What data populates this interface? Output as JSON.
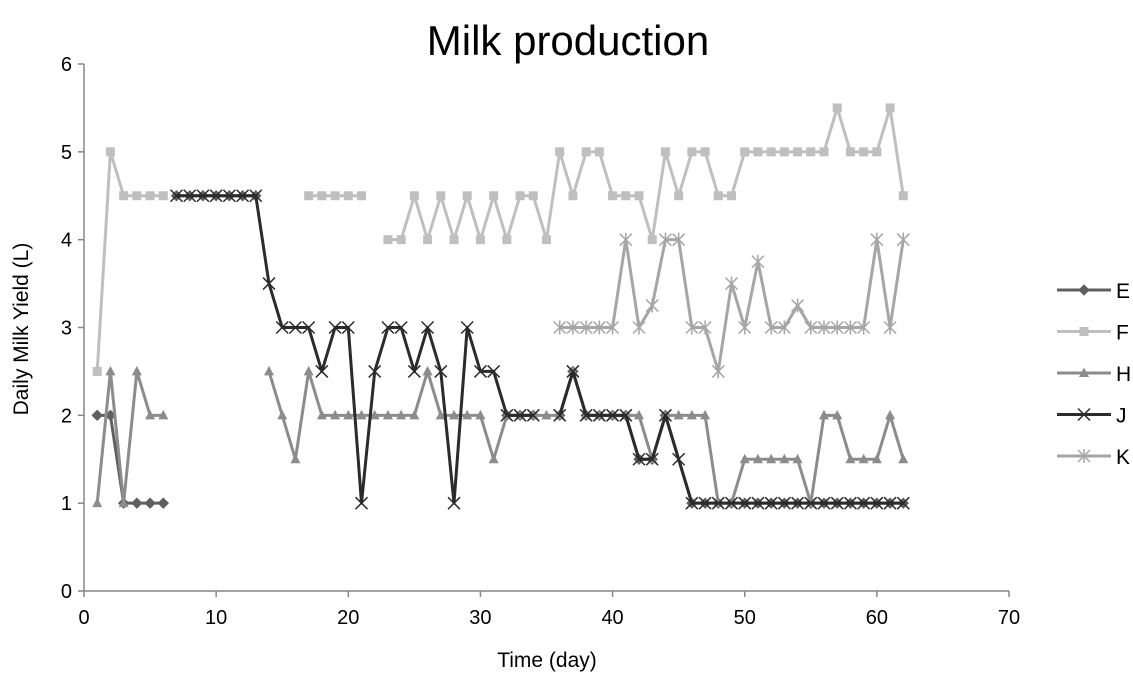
{
  "chart_data": {
    "type": "line",
    "title": "Milk production",
    "xlabel": "Time (day)",
    "ylabel": "Daily Milk Yield (L)",
    "xlim": [
      0,
      70
    ],
    "ylim": [
      0,
      6
    ],
    "xticks": [
      "0",
      "10",
      "20",
      "30",
      "40",
      "50",
      "60",
      "70"
    ],
    "yticks": [
      "0",
      "1",
      "2",
      "3",
      "4",
      "5",
      "6"
    ],
    "grid": false,
    "legend": "right",
    "series": [
      {
        "name": "E",
        "color": "#5f5f5f",
        "marker": "diamond",
        "points": [
          [
            1,
            2
          ],
          [
            2,
            2
          ],
          [
            3,
            1
          ],
          [
            4,
            1
          ],
          [
            5,
            1
          ],
          [
            6,
            1
          ],
          [
            7,
            4.5
          ],
          [
            8,
            4.5
          ],
          [
            9,
            4.5
          ],
          [
            10,
            4.5
          ],
          [
            11,
            4.5
          ],
          [
            12,
            4.5
          ],
          [
            13,
            4.5
          ],
          [
            32,
            2
          ],
          [
            33,
            2
          ],
          [
            34,
            2
          ],
          [
            36,
            2
          ],
          [
            37,
            2.5
          ],
          [
            38,
            2
          ],
          [
            39,
            2
          ],
          [
            40,
            2
          ],
          [
            41,
            2
          ],
          [
            42,
            1.5
          ],
          [
            43,
            1.5
          ],
          [
            44,
            2
          ],
          [
            46,
            1
          ],
          [
            47,
            1
          ],
          [
            48,
            1
          ],
          [
            49,
            1
          ],
          [
            50,
            1
          ],
          [
            51,
            1
          ],
          [
            52,
            1
          ],
          [
            53,
            1
          ],
          [
            54,
            1
          ],
          [
            55,
            1
          ],
          [
            56,
            1
          ],
          [
            57,
            1
          ],
          [
            58,
            1
          ],
          [
            59,
            1
          ],
          [
            60,
            1
          ],
          [
            61,
            1
          ],
          [
            62,
            1
          ]
        ],
        "breaks_after": [
          6,
          13,
          34
        ]
      },
      {
        "name": "F",
        "color": "#bfbfbf",
        "marker": "square",
        "points": [
          [
            1,
            2.5
          ],
          [
            2,
            5
          ],
          [
            3,
            4.5
          ],
          [
            4,
            4.5
          ],
          [
            5,
            4.5
          ],
          [
            6,
            4.5
          ],
          [
            17,
            4.5
          ],
          [
            18,
            4.5
          ],
          [
            19,
            4.5
          ],
          [
            20,
            4.5
          ],
          [
            21,
            4.5
          ],
          [
            23,
            4
          ],
          [
            24,
            4
          ],
          [
            25,
            4.5
          ],
          [
            26,
            4
          ],
          [
            27,
            4.5
          ],
          [
            28,
            4
          ],
          [
            29,
            4.5
          ],
          [
            30,
            4
          ],
          [
            31,
            4.5
          ],
          [
            32,
            4
          ],
          [
            33,
            4.5
          ],
          [
            34,
            4.5
          ],
          [
            35,
            4
          ],
          [
            36,
            5
          ],
          [
            37,
            4.5
          ],
          [
            38,
            5
          ],
          [
            39,
            5
          ],
          [
            40,
            4.5
          ],
          [
            41,
            4.5
          ],
          [
            42,
            4.5
          ],
          [
            43,
            4
          ],
          [
            44,
            5
          ],
          [
            45,
            4.5
          ],
          [
            46,
            5
          ],
          [
            47,
            5
          ],
          [
            48,
            4.5
          ],
          [
            49,
            4.5
          ],
          [
            50,
            5
          ],
          [
            51,
            5
          ],
          [
            52,
            5
          ],
          [
            53,
            5
          ],
          [
            54,
            5
          ],
          [
            55,
            5
          ],
          [
            56,
            5
          ],
          [
            57,
            5.5
          ],
          [
            58,
            5
          ],
          [
            59,
            5
          ],
          [
            60,
            5
          ],
          [
            61,
            5.5
          ],
          [
            62,
            4.5
          ]
        ],
        "breaks_after": [
          6,
          21
        ]
      },
      {
        "name": "H",
        "color": "#8c8c8c",
        "marker": "triangle",
        "points": [
          [
            1,
            1
          ],
          [
            2,
            2.5
          ],
          [
            3,
            1
          ],
          [
            4,
            2.5
          ],
          [
            5,
            2
          ],
          [
            6,
            2
          ],
          [
            14,
            2.5
          ],
          [
            15,
            2
          ],
          [
            16,
            1.5
          ],
          [
            17,
            2.5
          ],
          [
            18,
            2
          ],
          [
            19,
            2
          ],
          [
            20,
            2
          ],
          [
            21,
            2
          ],
          [
            22,
            2
          ],
          [
            23,
            2
          ],
          [
            24,
            2
          ],
          [
            25,
            2
          ],
          [
            26,
            2.5
          ],
          [
            27,
            2
          ],
          [
            28,
            2
          ],
          [
            29,
            2
          ],
          [
            30,
            2
          ],
          [
            31,
            1.5
          ],
          [
            32,
            2
          ],
          [
            33,
            2
          ],
          [
            34,
            2
          ],
          [
            35,
            2
          ],
          [
            36,
            2
          ],
          [
            37,
            2.5
          ],
          [
            38,
            2
          ],
          [
            39,
            2
          ],
          [
            40,
            2
          ],
          [
            41,
            2
          ],
          [
            42,
            2
          ],
          [
            43,
            1.5
          ],
          [
            44,
            2
          ],
          [
            45,
            2
          ],
          [
            46,
            2
          ],
          [
            47,
            2
          ],
          [
            48,
            1
          ],
          [
            49,
            1
          ],
          [
            50,
            1.5
          ],
          [
            51,
            1.5
          ],
          [
            52,
            1.5
          ],
          [
            53,
            1.5
          ],
          [
            54,
            1.5
          ],
          [
            55,
            1
          ],
          [
            56,
            2
          ],
          [
            57,
            2
          ],
          [
            58,
            1.5
          ],
          [
            59,
            1.5
          ],
          [
            60,
            1.5
          ],
          [
            61,
            2
          ],
          [
            62,
            1.5
          ]
        ],
        "breaks_after": [
          6
        ]
      },
      {
        "name": "J",
        "color": "#2b2b2b",
        "marker": "x",
        "points": [
          [
            7,
            4.5
          ],
          [
            8,
            4.5
          ],
          [
            9,
            4.5
          ],
          [
            10,
            4.5
          ],
          [
            11,
            4.5
          ],
          [
            12,
            4.5
          ],
          [
            13,
            4.5
          ],
          [
            14,
            3.5
          ],
          [
            15,
            3
          ],
          [
            16,
            3
          ],
          [
            17,
            3
          ],
          [
            18,
            2.5
          ],
          [
            19,
            3
          ],
          [
            20,
            3
          ],
          [
            21,
            1
          ],
          [
            22,
            2.5
          ],
          [
            23,
            3
          ],
          [
            24,
            3
          ],
          [
            25,
            2.5
          ],
          [
            26,
            3
          ],
          [
            27,
            2.5
          ],
          [
            28,
            1
          ],
          [
            29,
            3
          ],
          [
            30,
            2.5
          ],
          [
            31,
            2.5
          ],
          [
            32,
            2
          ],
          [
            33,
            2
          ],
          [
            34,
            2
          ],
          [
            36,
            2
          ],
          [
            37,
            2.5
          ],
          [
            38,
            2
          ],
          [
            39,
            2
          ],
          [
            40,
            2
          ],
          [
            41,
            2
          ],
          [
            42,
            1.5
          ],
          [
            43,
            1.5
          ],
          [
            44,
            2
          ],
          [
            45,
            1.5
          ],
          [
            46,
            1
          ],
          [
            47,
            1
          ],
          [
            48,
            1
          ],
          [
            49,
            1
          ],
          [
            50,
            1
          ],
          [
            51,
            1
          ],
          [
            52,
            1
          ],
          [
            53,
            1
          ],
          [
            54,
            1
          ],
          [
            55,
            1
          ],
          [
            56,
            1
          ],
          [
            57,
            1
          ],
          [
            58,
            1
          ],
          [
            59,
            1
          ],
          [
            60,
            1
          ],
          [
            61,
            1
          ],
          [
            62,
            1
          ]
        ],
        "breaks_after": [
          34
        ]
      },
      {
        "name": "K",
        "color": "#a6a6a6",
        "marker": "star",
        "points": [
          [
            36,
            3
          ],
          [
            37,
            3
          ],
          [
            38,
            3
          ],
          [
            39,
            3
          ],
          [
            40,
            3
          ],
          [
            41,
            4
          ],
          [
            42,
            3
          ],
          [
            43,
            3.25
          ],
          [
            44,
            4
          ],
          [
            45,
            4
          ],
          [
            46,
            3
          ],
          [
            47,
            3
          ],
          [
            48,
            2.5
          ],
          [
            49,
            3.5
          ],
          [
            50,
            3
          ],
          [
            51,
            3.75
          ],
          [
            52,
            3
          ],
          [
            53,
            3
          ],
          [
            54,
            3.25
          ],
          [
            55,
            3
          ],
          [
            56,
            3
          ],
          [
            57,
            3
          ],
          [
            58,
            3
          ],
          [
            59,
            3
          ],
          [
            60,
            4
          ],
          [
            61,
            3
          ],
          [
            62,
            4
          ]
        ],
        "breaks_after": []
      }
    ]
  }
}
